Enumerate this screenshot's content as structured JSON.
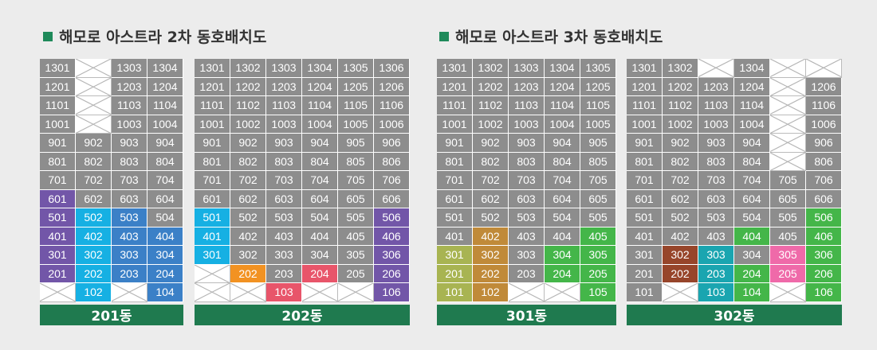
{
  "colors": {
    "gray": "#8d8d8d",
    "purple": "#7256a8",
    "cyan": "#16b0e3",
    "blue": "#3b80c7",
    "orange": "#f29222",
    "red": "#e8556a",
    "olive": "#a8b452",
    "tan": "#c08a39",
    "green": "#44b649",
    "brown": "#97452a",
    "teal": "#1aa5b0",
    "pink": "#ef6aa9",
    "title_green": "#1f8a5a",
    "label_green": "#1f7a4f"
  },
  "phases": [
    {
      "title": "해모로 아스트라 2차 동호배치도"
    },
    {
      "title": "해모로 아스트라 3차 동호배치도"
    }
  ],
  "buildings": [
    {
      "name": "201동",
      "rows": [
        [
          "1301",
          "x",
          "1303",
          "1304"
        ],
        [
          "1201",
          "x",
          "1203",
          "1204"
        ],
        [
          "1101",
          "x",
          "1103",
          "1104"
        ],
        [
          "1001",
          "x",
          "1003",
          "1004"
        ],
        [
          "901",
          "902",
          "903",
          "904"
        ],
        [
          "801",
          "802",
          "803",
          "804"
        ],
        [
          "701",
          "702",
          "703",
          "704"
        ],
        [
          "601",
          "602",
          "603",
          "604"
        ],
        [
          "501",
          "502",
          "503",
          "504"
        ],
        [
          "401",
          "402",
          "403",
          "404"
        ],
        [
          "301",
          "302",
          "303",
          "304"
        ],
        [
          "201",
          "202",
          "203",
          "204"
        ],
        [
          "x",
          "102",
          "x",
          "104"
        ]
      ],
      "colors": [
        [
          "",
          "",
          "",
          ""
        ],
        [
          "",
          "",
          "",
          ""
        ],
        [
          "",
          "",
          "",
          ""
        ],
        [
          "",
          "",
          "",
          ""
        ],
        [
          "",
          "",
          "",
          ""
        ],
        [
          "",
          "",
          "",
          ""
        ],
        [
          "",
          "",
          "",
          ""
        ],
        [
          "purple",
          "",
          "",
          ""
        ],
        [
          "purple",
          "cyan",
          "blue",
          ""
        ],
        [
          "purple",
          "cyan",
          "blue",
          "blue"
        ],
        [
          "purple",
          "cyan",
          "blue",
          "blue"
        ],
        [
          "purple",
          "cyan",
          "blue",
          "blue"
        ],
        [
          "",
          "cyan",
          "",
          "blue"
        ]
      ]
    },
    {
      "name": "202동",
      "rows": [
        [
          "1301",
          "1302",
          "1303",
          "1304",
          "1305",
          "1306"
        ],
        [
          "1201",
          "1202",
          "1203",
          "1204",
          "1205",
          "1206"
        ],
        [
          "1101",
          "1102",
          "1103",
          "1104",
          "1105",
          "1106"
        ],
        [
          "1001",
          "1002",
          "1003",
          "1004",
          "1005",
          "1006"
        ],
        [
          "901",
          "902",
          "903",
          "904",
          "905",
          "906"
        ],
        [
          "801",
          "802",
          "803",
          "804",
          "805",
          "806"
        ],
        [
          "701",
          "702",
          "703",
          "704",
          "705",
          "706"
        ],
        [
          "601",
          "602",
          "603",
          "604",
          "605",
          "606"
        ],
        [
          "501",
          "502",
          "503",
          "504",
          "505",
          "506"
        ],
        [
          "401",
          "402",
          "403",
          "404",
          "405",
          "406"
        ],
        [
          "301",
          "302",
          "303",
          "304",
          "305",
          "306"
        ],
        [
          "x",
          "202",
          "203",
          "204",
          "205",
          "206"
        ],
        [
          "x",
          "x",
          "103",
          "x",
          "x",
          "106"
        ]
      ],
      "colors": [
        [
          "",
          "",
          "",
          "",
          "",
          ""
        ],
        [
          "",
          "",
          "",
          "",
          "",
          ""
        ],
        [
          "",
          "",
          "",
          "",
          "",
          ""
        ],
        [
          "",
          "",
          "",
          "",
          "",
          ""
        ],
        [
          "",
          "",
          "",
          "",
          "",
          ""
        ],
        [
          "",
          "",
          "",
          "",
          "",
          ""
        ],
        [
          "",
          "",
          "",
          "",
          "",
          ""
        ],
        [
          "",
          "",
          "",
          "",
          "",
          ""
        ],
        [
          "cyan",
          "",
          "",
          "",
          "",
          "purple"
        ],
        [
          "cyan",
          "",
          "",
          "",
          "",
          "purple"
        ],
        [
          "cyan",
          "",
          "",
          "",
          "",
          "purple"
        ],
        [
          "",
          "orange",
          "",
          "red",
          "",
          "purple"
        ],
        [
          "",
          "",
          "red",
          "",
          "",
          "purple"
        ]
      ]
    },
    {
      "name": "301동",
      "rows": [
        [
          "1301",
          "1302",
          "1303",
          "1304",
          "1305"
        ],
        [
          "1201",
          "1202",
          "1203",
          "1204",
          "1205"
        ],
        [
          "1101",
          "1102",
          "1103",
          "1104",
          "1105"
        ],
        [
          "1001",
          "1002",
          "1003",
          "1004",
          "1005"
        ],
        [
          "901",
          "902",
          "903",
          "904",
          "905"
        ],
        [
          "801",
          "802",
          "803",
          "804",
          "805"
        ],
        [
          "701",
          "702",
          "703",
          "704",
          "705"
        ],
        [
          "601",
          "602",
          "603",
          "604",
          "605"
        ],
        [
          "501",
          "502",
          "503",
          "504",
          "505"
        ],
        [
          "401",
          "402",
          "403",
          "404",
          "405"
        ],
        [
          "301",
          "302",
          "303",
          "304",
          "305"
        ],
        [
          "201",
          "202",
          "203",
          "204",
          "205"
        ],
        [
          "101",
          "102",
          "x",
          "x",
          "105"
        ]
      ],
      "colors": [
        [
          "",
          "",
          "",
          "",
          ""
        ],
        [
          "",
          "",
          "",
          "",
          ""
        ],
        [
          "",
          "",
          "",
          "",
          ""
        ],
        [
          "",
          "",
          "",
          "",
          ""
        ],
        [
          "",
          "",
          "",
          "",
          ""
        ],
        [
          "",
          "",
          "",
          "",
          ""
        ],
        [
          "",
          "",
          "",
          "",
          ""
        ],
        [
          "",
          "",
          "",
          "",
          ""
        ],
        [
          "",
          "",
          "",
          "",
          ""
        ],
        [
          "",
          "tan",
          "",
          "",
          "green"
        ],
        [
          "olive",
          "tan",
          "",
          "green",
          "green"
        ],
        [
          "olive",
          "tan",
          "",
          "green",
          "green"
        ],
        [
          "olive",
          "tan",
          "",
          "",
          "green"
        ]
      ]
    },
    {
      "name": "302동",
      "rows": [
        [
          "1301",
          "1302",
          "x",
          "1304",
          "x",
          "x"
        ],
        [
          "1201",
          "1202",
          "1203",
          "1204",
          "x",
          "1206"
        ],
        [
          "1101",
          "1102",
          "1103",
          "1104",
          "x",
          "1106"
        ],
        [
          "1001",
          "1002",
          "1003",
          "1004",
          "x",
          "1006"
        ],
        [
          "901",
          "902",
          "903",
          "904",
          "x",
          "906"
        ],
        [
          "801",
          "802",
          "803",
          "804",
          "x",
          "806"
        ],
        [
          "701",
          "702",
          "703",
          "704",
          "705",
          "706"
        ],
        [
          "601",
          "602",
          "603",
          "604",
          "605",
          "606"
        ],
        [
          "501",
          "502",
          "503",
          "504",
          "505",
          "506"
        ],
        [
          "401",
          "402",
          "403",
          "404",
          "405",
          "406"
        ],
        [
          "301",
          "302",
          "303",
          "304",
          "305",
          "306"
        ],
        [
          "201",
          "202",
          "203",
          "204",
          "205",
          "206"
        ],
        [
          "101",
          "x",
          "103",
          "104",
          "x",
          "106"
        ]
      ],
      "colors": [
        [
          "",
          "",
          "",
          "",
          "",
          ""
        ],
        [
          "",
          "",
          "",
          "",
          "",
          ""
        ],
        [
          "",
          "",
          "",
          "",
          "",
          ""
        ],
        [
          "",
          "",
          "",
          "",
          "",
          ""
        ],
        [
          "",
          "",
          "",
          "",
          "",
          ""
        ],
        [
          "",
          "",
          "",
          "",
          "",
          ""
        ],
        [
          "",
          "",
          "",
          "",
          "",
          ""
        ],
        [
          "",
          "",
          "",
          "",
          "",
          ""
        ],
        [
          "",
          "",
          "",
          "",
          "",
          "green"
        ],
        [
          "",
          "",
          "",
          "green",
          "",
          "green"
        ],
        [
          "",
          "brown",
          "teal",
          "",
          "pink",
          "green"
        ],
        [
          "",
          "brown",
          "teal",
          "green",
          "pink",
          "green"
        ],
        [
          "",
          "",
          "teal",
          "green",
          "",
          "green"
        ]
      ]
    }
  ]
}
